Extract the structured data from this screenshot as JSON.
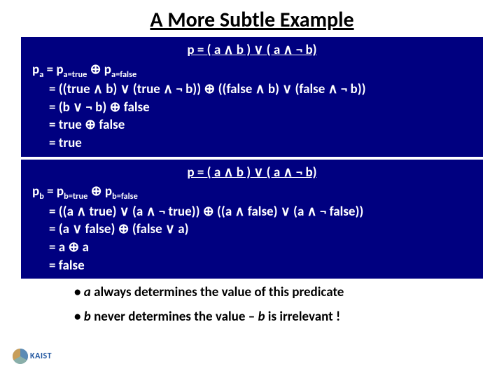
{
  "title": "A More Subtle Example",
  "box1": {
    "formula": "p = ( a ∧ b ) ∨ ( a ∧ ¬ b)",
    "l1_a": "p",
    "l1_b": "a",
    "l1_c": " = p",
    "l1_d": "a=true",
    "l1_e": " ⊕ p",
    "l1_f": "a=false",
    "l2": "= ((true ∧ b) ∨ (true ∧ ¬ b)) ⊕ ((false ∧ b) ∨ (false ∧ ¬ b))",
    "l3": "= (b ∨ ¬ b) ⊕ false",
    "l4": "= true ⊕ false",
    "l5": "= true"
  },
  "box2": {
    "formula": "p = ( a ∧ b ) ∨ ( a ∧ ¬ b)",
    "l1_a": "p",
    "l1_b": "b",
    "l1_c": " = p",
    "l1_d": "b=true",
    "l1_e": " ⊕ p",
    "l1_f": "b=false",
    "l2": "= ((a ∧ true) ∨ (a ∧ ¬ true)) ⊕ ((a ∧ false) ∨ (a ∧ ¬ false))",
    "l3": "= (a ∨ false) ⊕ (false ∨ a)",
    "l4": "= a ⊕ a",
    "l5": "= false"
  },
  "bullets": {
    "b1_pre": "• ",
    "b1_var": "a",
    "b1_post": " always determines the value of this predicate",
    "b2_pre": "• ",
    "b2_var1": "b",
    "b2_mid": " never determines the value – ",
    "b2_var2": "b",
    "b2_post": " is irrelevant !"
  },
  "logo": "KAIST",
  "colors": {
    "box_bg": "#000080",
    "box_fg": "#ffffff",
    "text": "#000000"
  }
}
